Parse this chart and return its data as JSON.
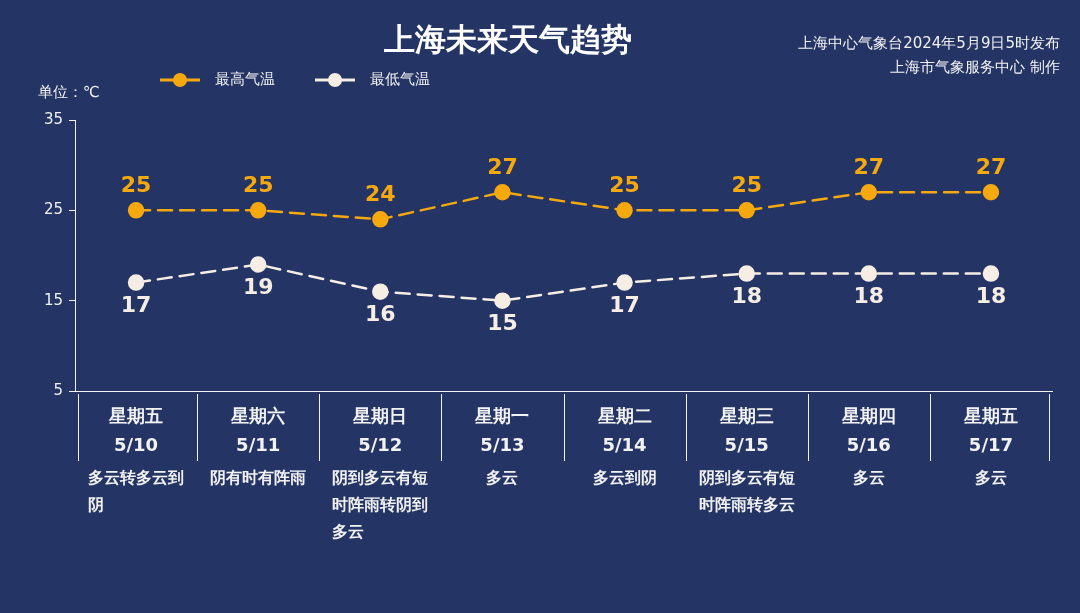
{
  "chart_data": {
    "type": "line",
    "title": "上海未来天气趋势",
    "ylabel": "单位：℃",
    "annotations": [
      "上海中心气象台2024年5月9日5时发布",
      "上海市气象服务中心 制作"
    ],
    "categories": [
      "星期五\n5/10\n多云转多云到阴",
      "星期六\n5/11\n阴有时有阵雨",
      "星期日\n5/12\n阴到多云有短时阵雨转阴到多云",
      "星期一\n5/13\n多云",
      "星期二\n5/14\n多云到阴",
      "星期三\n5/15\n阴到多云有短时阵雨转多云",
      "星期四\n5/16\n多云",
      "星期五\n5/17\n多云"
    ],
    "series": [
      {
        "name": "最高气温",
        "color": "#f6a90e",
        "values": [
          25,
          25,
          24,
          27,
          25,
          25,
          27,
          27
        ]
      },
      {
        "name": "最低气温",
        "color": "#f6eee4",
        "values": [
          17,
          19,
          16,
          15,
          17,
          18,
          18,
          18
        ]
      }
    ],
    "ylim": [
      5,
      35
    ],
    "yticks": [
      5,
      15,
      25,
      35
    ],
    "data_labels": true,
    "legend": "top left",
    "marker": "circle",
    "line_style": "dashed"
  }
}
